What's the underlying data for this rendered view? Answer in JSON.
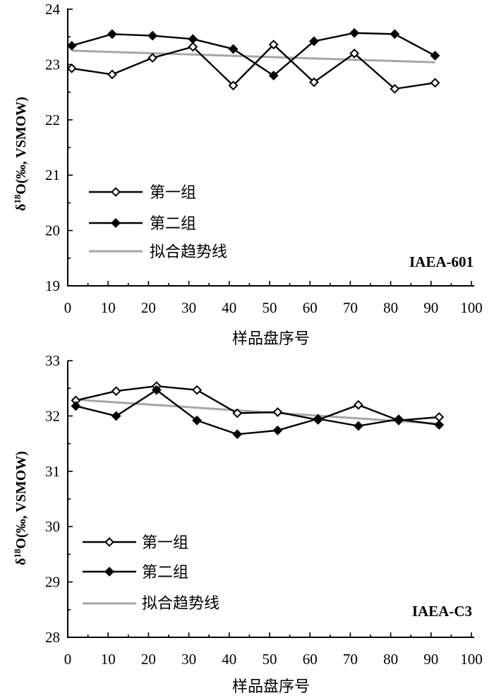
{
  "chart_data": [
    {
      "type": "line",
      "title": "",
      "tag": "IAEA-601",
      "xlabel": "样品盘序号",
      "ylabel": "δ18O(‰, VSMOW)",
      "ylabel_parts": {
        "symbol": "δ",
        "sup": "18",
        "rest": "O(‰, VSMOW)"
      },
      "xlim": [
        0,
        100
      ],
      "ylim": [
        19,
        24
      ],
      "xticks": [
        "0",
        "10",
        "20",
        "30",
        "40",
        "50",
        "60",
        "70",
        "80",
        "90",
        "100"
      ],
      "yticks": [
        "19",
        "20",
        "21",
        "22",
        "23",
        "24"
      ],
      "x": [
        1,
        11,
        21,
        31,
        41,
        51,
        61,
        71,
        81,
        91
      ],
      "series": [
        {
          "name": "第一组",
          "marker": "open-diamond",
          "color": "#000000",
          "values": [
            22.93,
            22.82,
            23.12,
            23.32,
            22.62,
            23.36,
            22.68,
            23.2,
            22.56,
            22.67
          ]
        },
        {
          "name": "第二组",
          "marker": "filled-diamond",
          "color": "#000000",
          "values": [
            23.34,
            23.55,
            23.52,
            23.46,
            23.28,
            22.8,
            23.42,
            23.57,
            23.55,
            23.16
          ]
        },
        {
          "name": "拟合趋势线",
          "marker": "none",
          "color": "#a6a6a6",
          "x": [
            1,
            91
          ],
          "values": [
            23.25,
            23.04
          ]
        }
      ],
      "legend": "middle-left"
    },
    {
      "type": "line",
      "title": "",
      "tag": "IAEA-C3",
      "xlabel": "样品盘序号",
      "ylabel": "δ18O(‰, VSMOW)",
      "ylabel_parts": {
        "symbol": "δ",
        "sup": "18",
        "rest": "O(‰, VSMOW)"
      },
      "xlim": [
        0,
        100
      ],
      "ylim": [
        28,
        33
      ],
      "xticks": [
        "0",
        "10",
        "20",
        "30",
        "40",
        "50",
        "60",
        "70",
        "80",
        "90",
        "100"
      ],
      "yticks": [
        "28",
        "29",
        "30",
        "31",
        "32",
        "33"
      ],
      "x": [
        2,
        12,
        22,
        32,
        42,
        52,
        62,
        72,
        82,
        92
      ],
      "series": [
        {
          "name": "第一组",
          "marker": "open-diamond",
          "color": "#000000",
          "values": [
            32.28,
            32.45,
            32.54,
            32.47,
            32.05,
            32.07,
            31.93,
            32.2,
            31.92,
            31.98
          ]
        },
        {
          "name": "第二组",
          "marker": "filled-diamond",
          "color": "#000000",
          "values": [
            32.18,
            32.0,
            32.47,
            31.92,
            31.67,
            31.74,
            31.95,
            31.82,
            31.94,
            31.84
          ]
        },
        {
          "name": "拟合趋势线",
          "marker": "none",
          "color": "#a6a6a6",
          "x": [
            1,
            92
          ],
          "values": [
            32.3,
            31.86
          ]
        }
      ],
      "legend": "bottom-left"
    }
  ]
}
